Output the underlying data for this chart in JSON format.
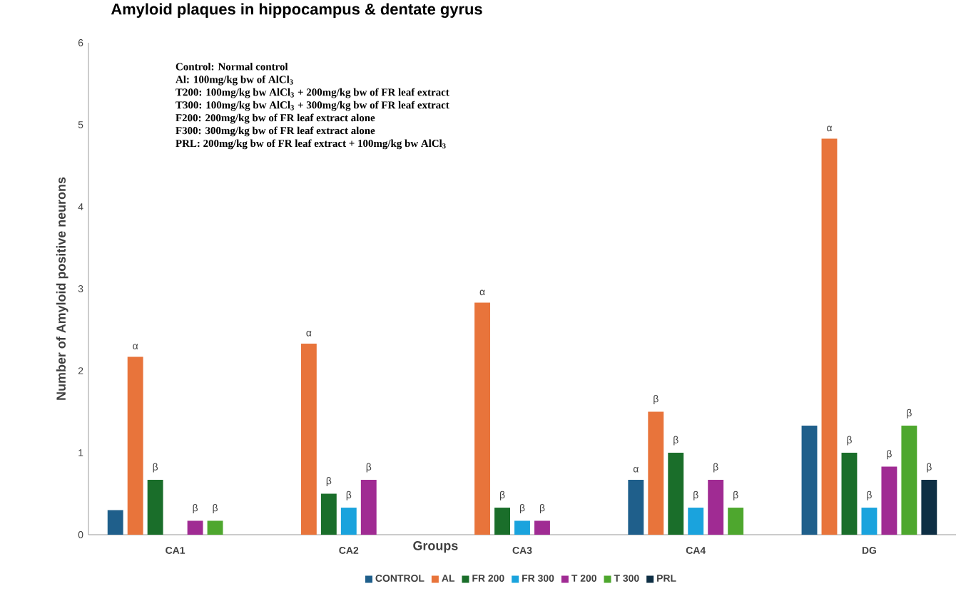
{
  "chart_data": {
    "type": "bar",
    "title": "Amyloid plaques in hippocampus & dentate gyrus",
    "xlabel": "Groups",
    "ylabel": "Number of Amyloid positive neurons",
    "categories": [
      "CA1",
      "CA2",
      "CA3",
      "CA4",
      "DG"
    ],
    "ylim": [
      0,
      6
    ],
    "yticks": [
      0,
      1,
      2,
      3,
      4,
      5,
      6
    ],
    "grid": false,
    "legend": "bottom",
    "series": [
      {
        "name": "CONTROL",
        "color": "#1f5f8b",
        "values": [
          0.3,
          0,
          0,
          0.67,
          1.33
        ],
        "value_labels": [
          null,
          null,
          null,
          "α",
          null
        ]
      },
      {
        "name": "AL",
        "color": "#e8743b",
        "values": [
          2.17,
          2.33,
          2.83,
          1.5,
          4.83
        ],
        "value_labels": [
          "α",
          "α",
          "α",
          "β",
          "α"
        ]
      },
      {
        "name": "FR 200",
        "color": "#1a6e2a",
        "values": [
          0.67,
          0.5,
          0.33,
          1.0,
          1.0
        ],
        "value_labels": [
          "β",
          "β",
          "β",
          "β",
          "β"
        ]
      },
      {
        "name": "FR 300",
        "color": "#1aa3dd",
        "values": [
          0,
          0.33,
          0.17,
          0.33,
          0.33
        ],
        "value_labels": [
          null,
          "β",
          "β",
          "β",
          "β"
        ]
      },
      {
        "name": "T 200",
        "color": "#a02b93",
        "values": [
          0.17,
          0.67,
          0.17,
          0.67,
          0.83
        ],
        "value_labels": [
          "β",
          "β",
          "β",
          "β",
          "β"
        ]
      },
      {
        "name": "T 300",
        "color": "#4ea72e",
        "values": [
          0.17,
          0,
          0,
          0.33,
          1.33
        ],
        "value_labels": [
          "β",
          null,
          null,
          "β",
          "β"
        ]
      },
      {
        "name": "PRL",
        "color": "#0e2f44",
        "values": [
          0,
          0,
          0,
          0,
          0.67
        ],
        "value_labels": [
          null,
          null,
          null,
          null,
          "β"
        ]
      }
    ],
    "annotations": [
      "Control: Normal control",
      "Al:  100mg/kg bw of AlCl$_{3}$",
      "T200: 100mg/kg bw AlCl$_{3}$ + 200mg/kg bw of FR leaf extract",
      "T300: 100mg/kg bw AlCl$_{3}$ + 300mg/kg bw of FR leaf extract",
      "F200: 200mg/kg bw of FR leaf extract alone",
      "F300: 300mg/kg bw of FR leaf extract alone",
      "PRL: 200mg/kg bw of FR leaf extract + 100mg/kg bw AlCl$_{3}$"
    ]
  }
}
